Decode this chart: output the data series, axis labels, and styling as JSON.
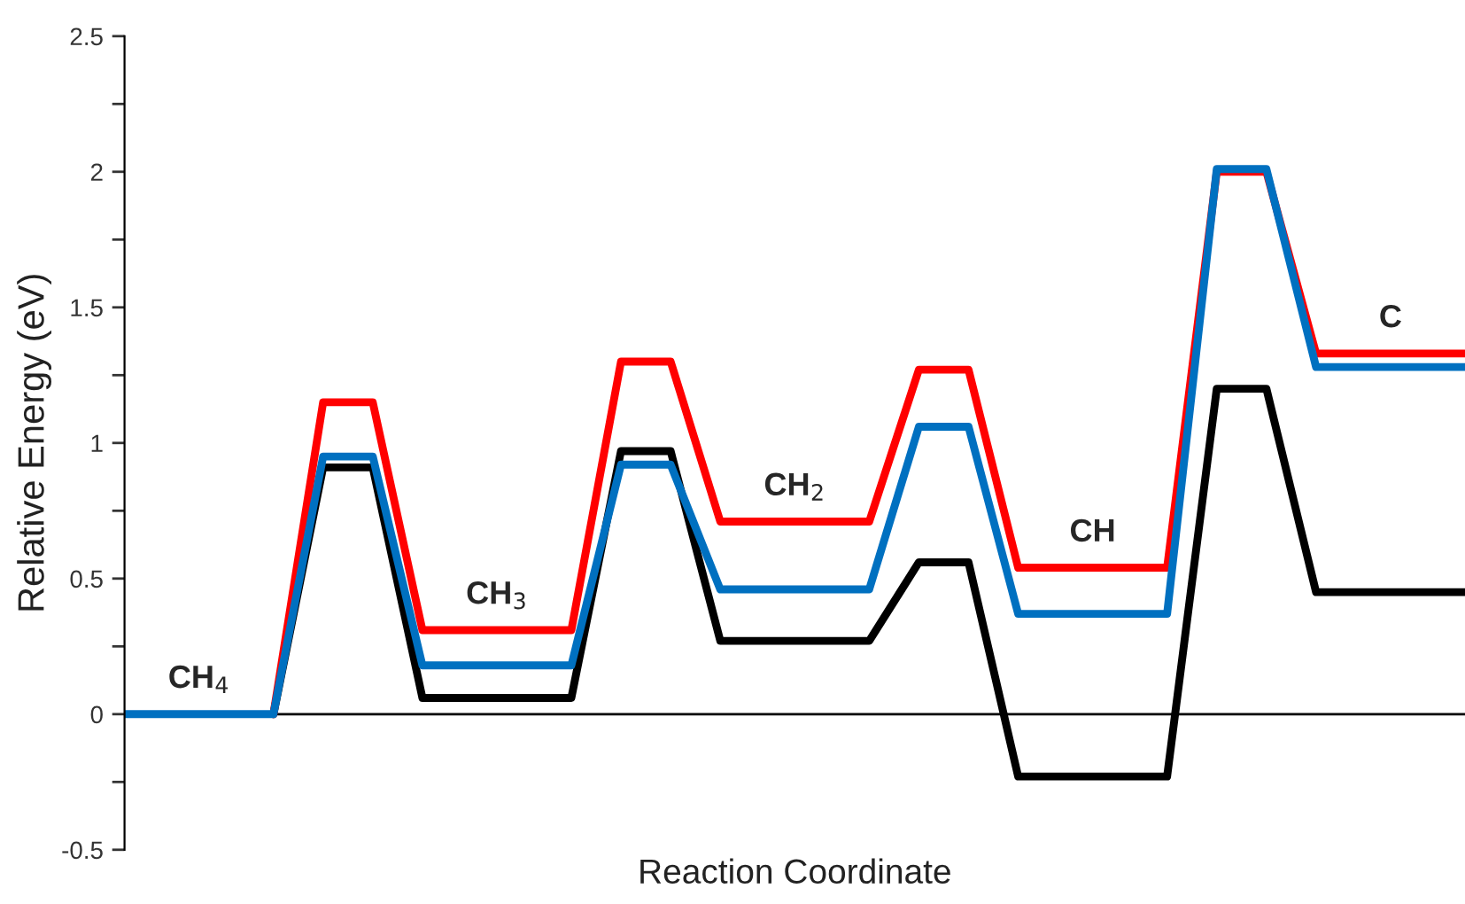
{
  "chart_data": {
    "type": "line",
    "xlabel": "Reaction Coordinate",
    "ylabel": "Relative Energy (eV)",
    "categories": [
      null,
      null,
      null,
      null,
      null,
      null,
      null,
      null,
      null,
      null,
      null,
      null,
      null,
      null,
      null,
      null,
      null,
      null,
      null,
      null,
      null,
      null,
      null,
      null,
      null,
      null,
      null,
      null
    ],
    "series": [
      {
        "color": "#000000",
        "values": [
          null,
          null,
          null,
          0,
          0.91,
          0.91,
          0.06,
          0.06,
          0.06,
          0.06,
          0.97,
          0.97,
          0.27,
          0.27,
          0.27,
          0.27,
          0.56,
          0.56,
          -0.23,
          -0.23,
          -0.23,
          -0.23,
          1.2,
          1.2,
          0.45,
          0.45,
          0.45,
          0.45
        ]
      },
      {
        "color": "#ff0000",
        "values": [
          null,
          null,
          null,
          0,
          1.15,
          1.15,
          0.31,
          0.31,
          0.31,
          0.31,
          1.3,
          1.3,
          0.71,
          0.71,
          0.71,
          0.71,
          1.27,
          1.27,
          0.54,
          0.54,
          0.54,
          0.54,
          2.0,
          2.0,
          1.33,
          1.33,
          1.33,
          1.33
        ]
      },
      {
        "color": "#0070c0",
        "values": [
          0,
          0,
          0,
          0,
          0.95,
          0.95,
          0.18,
          0.18,
          0.18,
          0.18,
          0.92,
          0.92,
          0.46,
          0.46,
          0.46,
          0.46,
          1.06,
          1.06,
          0.37,
          0.37,
          0.37,
          0.37,
          2.01,
          2.01,
          1.28,
          1.28,
          1.28,
          1.28
        ]
      }
    ],
    "ylim": [
      -0.5,
      2.5
    ],
    "yticks": [
      -0.5,
      {
        "value": -0.25,
        "label": null
      },
      0,
      {
        "value": 0.25,
        "label": null
      },
      0.5,
      {
        "value": 0.75,
        "label": null
      },
      1,
      {
        "value": 1.25,
        "label": null
      },
      1.5,
      {
        "value": 1.75,
        "label": null
      },
      2,
      {
        "value": 2.25,
        "label": null
      },
      2.5
    ],
    "ref_lines": [
      {
        "axis": "y",
        "value": 0,
        "color": "#000000"
      }
    ],
    "tick_labels": "y",
    "grid": false,
    "legend": false,
    "marker": "none",
    "line_style": "solid",
    "annotations": [
      "CH$_{4}$",
      "CH$_{3}$",
      "CH$_{2}$",
      "CH",
      "C"
    ]
  }
}
